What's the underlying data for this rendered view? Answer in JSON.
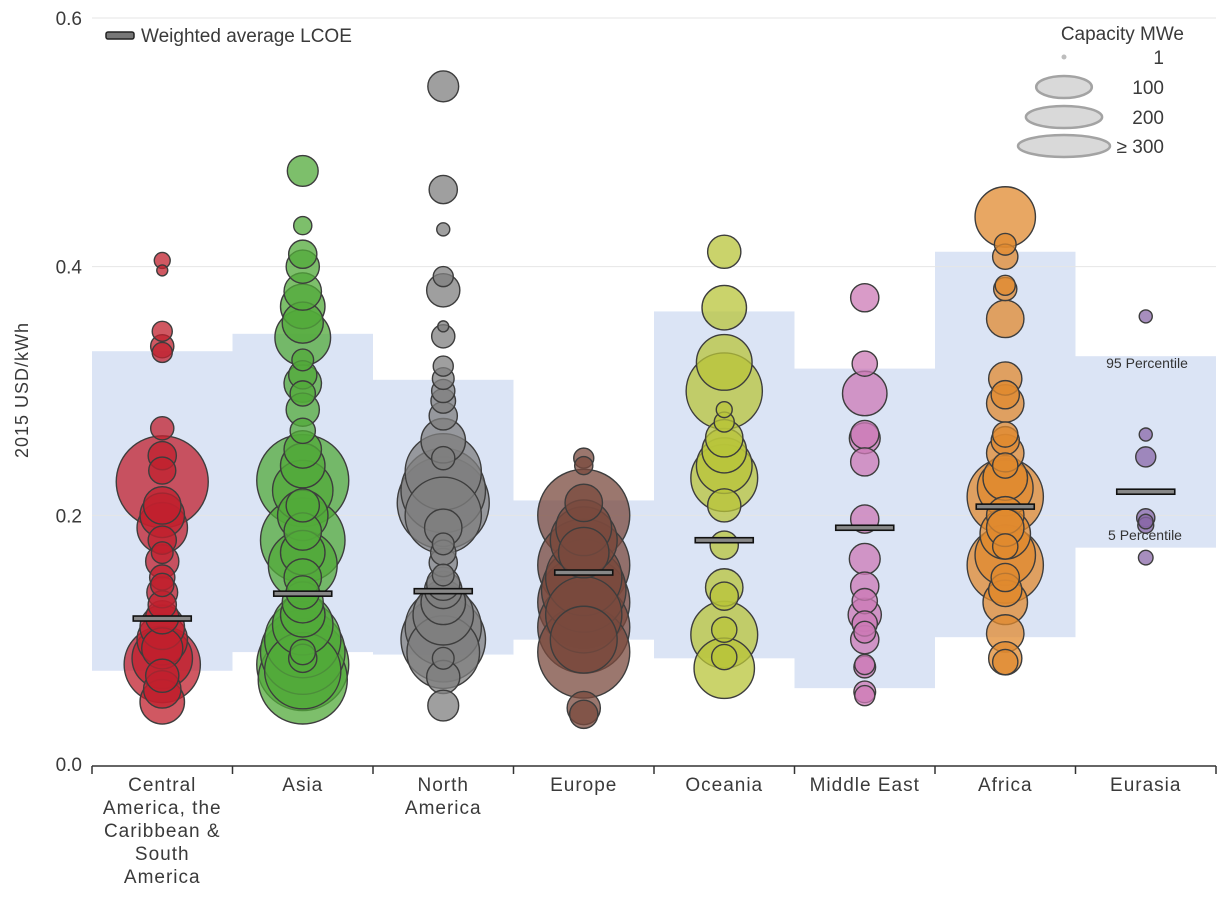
{
  "chart_data": {
    "type": "scatter",
    "ylabel": "2015 USD/kWh",
    "ylim": [
      0,
      0.6
    ],
    "yticks": [
      "0.0",
      "0.2",
      "0.4",
      "0.6"
    ],
    "grid": true,
    "legend": {
      "line_label": "Weighted average LCOE",
      "size_title": "Capacity MWe",
      "size_labels": [
        "1",
        "100",
        "200",
        "≥ 300"
      ],
      "size_values": [
        1,
        100,
        200,
        300
      ]
    },
    "percentile_labels": {
      "p95": "95 Percentile",
      "p5": "5 Percentile"
    },
    "colors": {
      "band": "#dbe4f5",
      "Central America, the Caribbean & South America": "#c0202e",
      "Asia": "#52a93a",
      "North America": "#7f7f7f",
      "Europe": "#7a4a3e",
      "Oceania": "#b8c43a",
      "Middle East": "#cc7ab5",
      "Africa": "#e08a2f",
      "Eurasia": "#8a68a8"
    },
    "categories": [
      {
        "name": "Central America, the Caribbean & South America",
        "label_lines": [
          "Central",
          "America, the",
          "Caribbean &",
          "South",
          "America"
        ],
        "p5": 0.075,
        "p95": 0.332,
        "weighted_avg": 0.117,
        "points": [
          [
            0.405,
            4
          ],
          [
            0.397,
            1
          ],
          [
            0.348,
            8
          ],
          [
            0.336,
            12
          ],
          [
            0.331,
            8
          ],
          [
            0.27,
            12
          ],
          [
            0.248,
            20
          ],
          [
            0.236,
            18
          ],
          [
            0.227,
            300
          ],
          [
            0.208,
            40
          ],
          [
            0.2,
            60
          ],
          [
            0.19,
            80
          ],
          [
            0.18,
            20
          ],
          [
            0.17,
            10
          ],
          [
            0.163,
            30
          ],
          [
            0.15,
            15
          ],
          [
            0.144,
            12
          ],
          [
            0.138,
            25
          ],
          [
            0.128,
            20
          ],
          [
            0.118,
            30
          ],
          [
            0.11,
            60
          ],
          [
            0.1,
            80
          ],
          [
            0.093,
            50
          ],
          [
            0.085,
            120
          ],
          [
            0.08,
            200
          ],
          [
            0.071,
            30
          ],
          [
            0.06,
            40
          ],
          [
            0.05,
            60
          ]
        ]
      },
      {
        "name": "Asia",
        "label_lines": [
          "Asia"
        ],
        "p5": 0.09,
        "p95": 0.346,
        "weighted_avg": 0.137,
        "points": [
          [
            0.477,
            25
          ],
          [
            0.433,
            6
          ],
          [
            0.41,
            20
          ],
          [
            0.4,
            30
          ],
          [
            0.38,
            40
          ],
          [
            0.368,
            60
          ],
          [
            0.355,
            50
          ],
          [
            0.343,
            100
          ],
          [
            0.325,
            10
          ],
          [
            0.313,
            20
          ],
          [
            0.306,
            40
          ],
          [
            0.298,
            15
          ],
          [
            0.285,
            30
          ],
          [
            0.268,
            15
          ],
          [
            0.253,
            40
          ],
          [
            0.24,
            60
          ],
          [
            0.228,
            300
          ],
          [
            0.22,
            120
          ],
          [
            0.208,
            30
          ],
          [
            0.2,
            80
          ],
          [
            0.187,
            40
          ],
          [
            0.18,
            250
          ],
          [
            0.17,
            60
          ],
          [
            0.16,
            160
          ],
          [
            0.15,
            40
          ],
          [
            0.138,
            30
          ],
          [
            0.13,
            50
          ],
          [
            0.12,
            60
          ],
          [
            0.112,
            120
          ],
          [
            0.1,
            200
          ],
          [
            0.09,
            250
          ],
          [
            0.08,
            300
          ],
          [
            0.075,
            200
          ],
          [
            0.068,
            280
          ],
          [
            0.09,
            15
          ],
          [
            0.085,
            20
          ]
        ]
      },
      {
        "name": "North America",
        "label_lines": [
          "North",
          "America"
        ],
        "p5": 0.088,
        "p95": 0.309,
        "weighted_avg": 0.139,
        "points": [
          [
            0.545,
            25
          ],
          [
            0.462,
            20
          ],
          [
            0.43,
            2
          ],
          [
            0.392,
            8
          ],
          [
            0.381,
            30
          ],
          [
            0.352,
            1
          ],
          [
            0.344,
            12
          ],
          [
            0.32,
            8
          ],
          [
            0.31,
            10
          ],
          [
            0.3,
            12
          ],
          [
            0.292,
            14
          ],
          [
            0.28,
            20
          ],
          [
            0.26,
            60
          ],
          [
            0.246,
            12
          ],
          [
            0.235,
            200
          ],
          [
            0.22,
            250
          ],
          [
            0.21,
            300
          ],
          [
            0.2,
            200
          ],
          [
            0.19,
            40
          ],
          [
            0.177,
            10
          ],
          [
            0.17,
            15
          ],
          [
            0.162,
            20
          ],
          [
            0.152,
            10
          ],
          [
            0.145,
            30
          ],
          [
            0.14,
            40
          ],
          [
            0.13,
            60
          ],
          [
            0.12,
            120
          ],
          [
            0.11,
            200
          ],
          [
            0.1,
            250
          ],
          [
            0.09,
            180
          ],
          [
            0.085,
            10
          ],
          [
            0.07,
            30
          ],
          [
            0.047,
            25
          ]
        ]
      },
      {
        "name": "Europe",
        "label_lines": [
          "Europe"
        ],
        "p5": 0.1,
        "p95": 0.212,
        "weighted_avg": 0.154,
        "points": [
          [
            0.246,
            8
          ],
          [
            0.24,
            6
          ],
          [
            0.21,
            40
          ],
          [
            0.2,
            300
          ],
          [
            0.19,
            100
          ],
          [
            0.18,
            150
          ],
          [
            0.17,
            80
          ],
          [
            0.16,
            300
          ],
          [
            0.15,
            200
          ],
          [
            0.14,
            250
          ],
          [
            0.13,
            300
          ],
          [
            0.12,
            200
          ],
          [
            0.11,
            300
          ],
          [
            0.1,
            150
          ],
          [
            0.09,
            300
          ],
          [
            0.045,
            30
          ],
          [
            0.04,
            20
          ]
        ]
      },
      {
        "name": "Oceania",
        "label_lines": [
          "Oceania"
        ],
        "p5": 0.085,
        "p95": 0.364,
        "weighted_avg": 0.18,
        "points": [
          [
            0.412,
            30
          ],
          [
            0.367,
            60
          ],
          [
            0.323,
            100
          ],
          [
            0.3,
            200
          ],
          [
            0.285,
            4
          ],
          [
            0.275,
            8
          ],
          [
            0.262,
            40
          ],
          [
            0.252,
            60
          ],
          [
            0.24,
            100
          ],
          [
            0.23,
            150
          ],
          [
            0.208,
            30
          ],
          [
            0.176,
            20
          ],
          [
            0.142,
            40
          ],
          [
            0.135,
            20
          ],
          [
            0.108,
            15
          ],
          [
            0.104,
            150
          ],
          [
            0.086,
            15
          ],
          [
            0.077,
            120
          ]
        ]
      },
      {
        "name": "Middle East",
        "label_lines": [
          "Middle East"
        ],
        "p5": 0.061,
        "p95": 0.318,
        "weighted_avg": 0.19,
        "points": [
          [
            0.375,
            20
          ],
          [
            0.322,
            15
          ],
          [
            0.298,
            60
          ],
          [
            0.265,
            20
          ],
          [
            0.262,
            25
          ],
          [
            0.243,
            20
          ],
          [
            0.197,
            20
          ],
          [
            0.165,
            25
          ],
          [
            0.143,
            20
          ],
          [
            0.131,
            15
          ],
          [
            0.12,
            30
          ],
          [
            0.113,
            15
          ],
          [
            0.106,
            10
          ],
          [
            0.1,
            20
          ],
          [
            0.08,
            8
          ],
          [
            0.078,
            10
          ],
          [
            0.058,
            10
          ],
          [
            0.055,
            8
          ]
        ]
      },
      {
        "name": "Africa",
        "label_lines": [
          "Africa"
        ],
        "p5": 0.102,
        "p95": 0.412,
        "weighted_avg": 0.207,
        "points": [
          [
            0.44,
            120
          ],
          [
            0.418,
            10
          ],
          [
            0.408,
            15
          ],
          [
            0.385,
            8
          ],
          [
            0.382,
            12
          ],
          [
            0.358,
            40
          ],
          [
            0.31,
            30
          ],
          [
            0.297,
            20
          ],
          [
            0.29,
            40
          ],
          [
            0.265,
            15
          ],
          [
            0.26,
            20
          ],
          [
            0.25,
            40
          ],
          [
            0.24,
            15
          ],
          [
            0.23,
            60
          ],
          [
            0.222,
            100
          ],
          [
            0.215,
            200
          ],
          [
            0.2,
            40
          ],
          [
            0.19,
            40
          ],
          [
            0.185,
            80
          ],
          [
            0.175,
            15
          ],
          [
            0.168,
            120
          ],
          [
            0.16,
            200
          ],
          [
            0.15,
            20
          ],
          [
            0.14,
            30
          ],
          [
            0.13,
            60
          ],
          [
            0.105,
            40
          ],
          [
            0.085,
            30
          ],
          [
            0.082,
            15
          ]
        ]
      },
      {
        "name": "Eurasia",
        "label_lines": [
          "Eurasia"
        ],
        "p5": 0.174,
        "p95": 0.328,
        "weighted_avg": 0.219,
        "points": [
          [
            0.36,
            2
          ],
          [
            0.265,
            2
          ],
          [
            0.247,
            8
          ],
          [
            0.198,
            6
          ],
          [
            0.195,
            3
          ],
          [
            0.192,
            4
          ],
          [
            0.166,
            3
          ]
        ]
      }
    ]
  }
}
